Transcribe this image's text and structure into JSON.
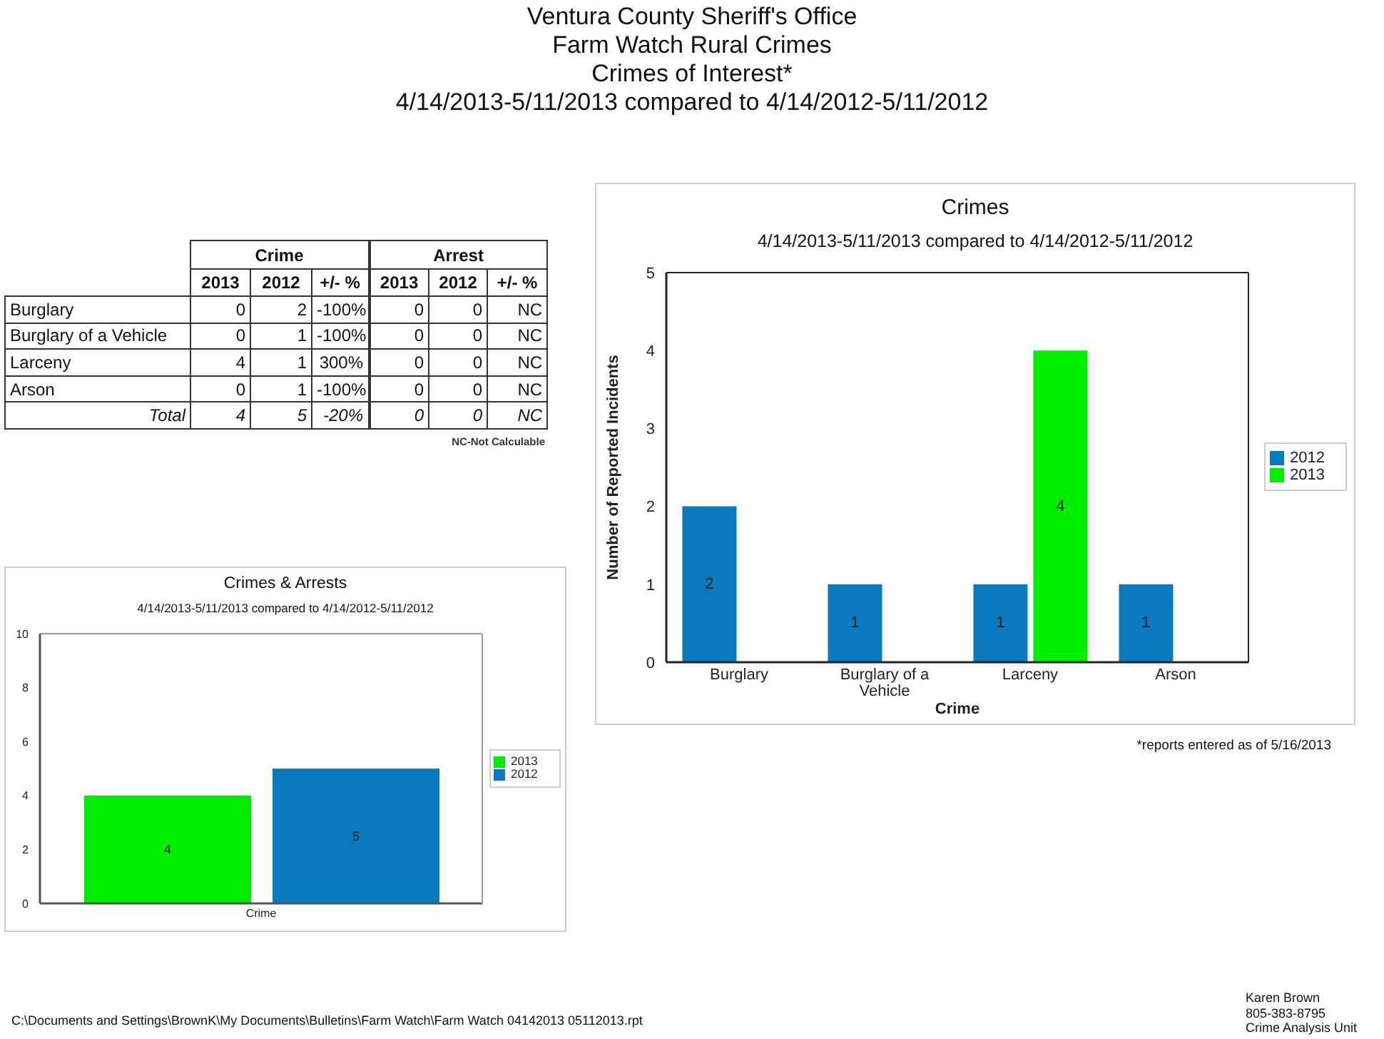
{
  "chart_data": [
    {
      "type": "other",
      "title": "Ventura County Sheriff's Office\nFarm Watch Rural Crimes\nCrimes of Interest*\n4/14/2013-5/11/2013 compared to 4/14/2012-5/11/2012",
      "annotations": [
        "C:\\Documents and Settings\\BrownK\\My Documents\\Bulletins\\Farm Watch\\Farm Watch 04142013 05112013.rpt",
        "Karen Brown",
        "805-383-8795",
        "Crime Analysis Unit",
        "NC-Not Calculable"
      ]
    },
    {
      "type": "other",
      "categories": [
        "Burglary",
        "Burglary of a Vehicle",
        "Larceny",
        "Arson",
        "Total"
      ],
      "annotations": [
        "Crime",
        "Arrest"
      ],
      "series": [
        {
          "name": "2013",
          "values": [
            0,
            0,
            4,
            0,
            4
          ],
          "value_labels": [
            "0",
            "0",
            "4",
            "0",
            "4"
          ]
        },
        {
          "name": "2012",
          "values": [
            2,
            1,
            1,
            1,
            5
          ],
          "value_labels": [
            "2",
            "1",
            "1",
            "1",
            "5"
          ]
        },
        {
          "name": "+/- %",
          "values": [
            -100,
            -100,
            300,
            -100,
            -20
          ],
          "value_labels": [
            "-100%",
            "-100%",
            "300%",
            "-100%",
            "-20%"
          ]
        },
        {
          "name": "2013",
          "values": [
            0,
            0,
            0,
            0,
            0
          ],
          "value_labels": [
            "0",
            "0",
            "0",
            "0",
            "0"
          ]
        },
        {
          "name": "2012",
          "values": [
            0,
            0,
            0,
            0,
            0
          ],
          "value_labels": [
            "0",
            "0",
            "0",
            "0",
            "0"
          ]
        },
        {
          "name": "+/- %",
          "values": [
            null,
            null,
            null,
            null,
            null
          ],
          "value_labels": [
            "NC",
            "NC",
            "NC",
            "NC",
            "NC"
          ]
        }
      ]
    },
    {
      "type": "bar",
      "title": "Crimes",
      "subtitle": "4/14/2013-5/11/2013 compared to 4/14/2012-5/11/2012",
      "xlabel": "Crime",
      "ylabel": "Number of Reported Incidents",
      "categories": [
        "Burglary",
        "Burglary of a Vehicle",
        "Larceny",
        "Arson"
      ],
      "series": [
        {
          "name": "2012",
          "color": "#0a7abf",
          "values": [
            2,
            1,
            1,
            1
          ],
          "value_labels": [
            "2",
            "1",
            "1",
            "1"
          ]
        },
        {
          "name": "2013",
          "color": "#00ee00",
          "values": [
            0,
            0,
            4,
            0
          ],
          "value_labels": [
            null,
            null,
            "4",
            null
          ]
        }
      ],
      "ylim": [
        0,
        5
      ],
      "yticks": [
        0,
        1,
        2,
        3,
        4,
        5
      ],
      "legend": "right",
      "annotations": [
        "*reports entered as of 5/16/2013"
      ]
    },
    {
      "type": "bar",
      "title": "Crimes & Arrests",
      "subtitle": "4/14/2013-5/11/2013 compared to 4/14/2012-5/11/2012",
      "categories": [
        "Crime"
      ],
      "series": [
        {
          "name": "2013",
          "color": "#00ee00",
          "values": [
            4
          ]
        },
        {
          "name": "2012",
          "color": "#0a7abf",
          "values": [
            5
          ]
        }
      ],
      "ylim": [
        0,
        10
      ],
      "yticks": [
        0,
        2,
        4,
        6,
        8,
        10
      ],
      "data_labels": true,
      "legend": "right"
    }
  ]
}
